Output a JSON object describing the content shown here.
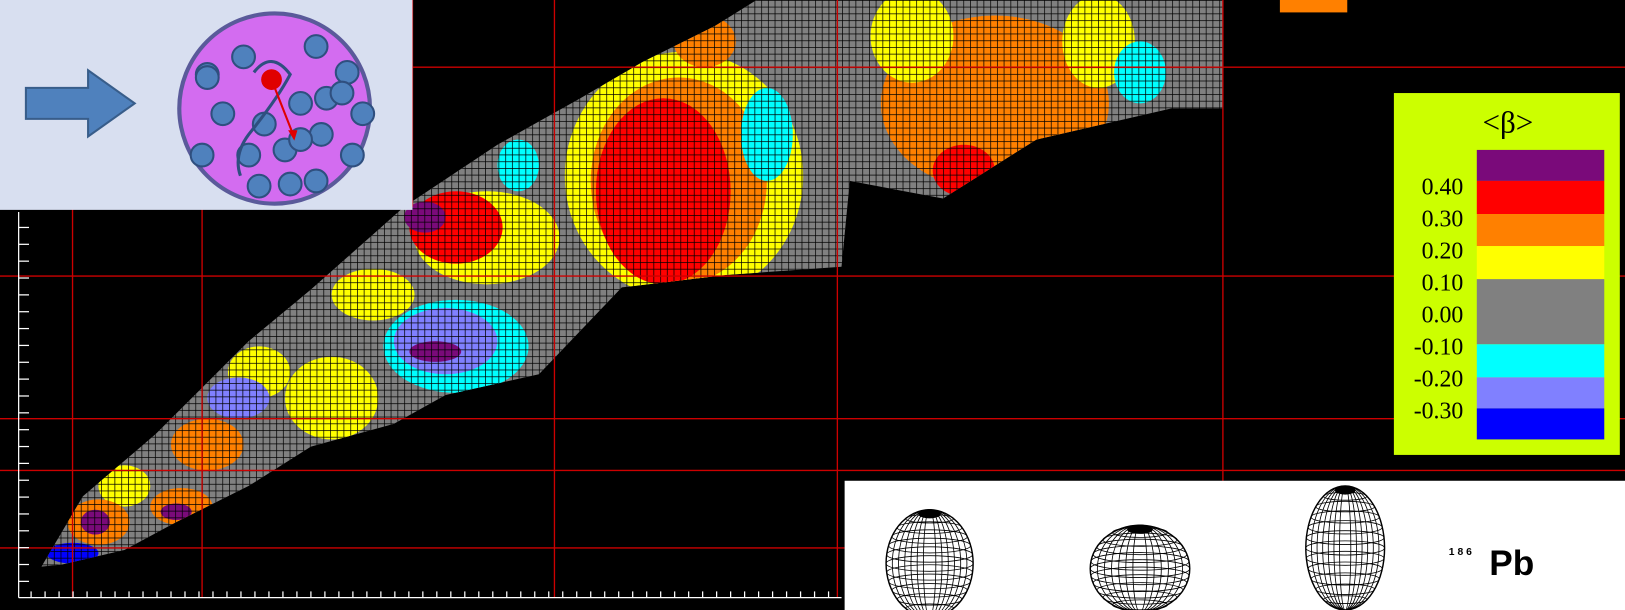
{
  "legend": {
    "title": "<β>",
    "labels": [
      "0.40",
      "0.30",
      "0.20",
      "0.10",
      "0.00",
      "-0.10",
      "-0.20",
      "-0.30"
    ],
    "colors": [
      "#7a0a7a",
      "#ff0000",
      "#ff8000",
      "#ffff00",
      "#808080",
      "#00ffff",
      "#8080ff",
      "#0000ff"
    ]
  },
  "inset": {
    "mass_number": "1 8 6",
    "element": "Pb"
  }
}
